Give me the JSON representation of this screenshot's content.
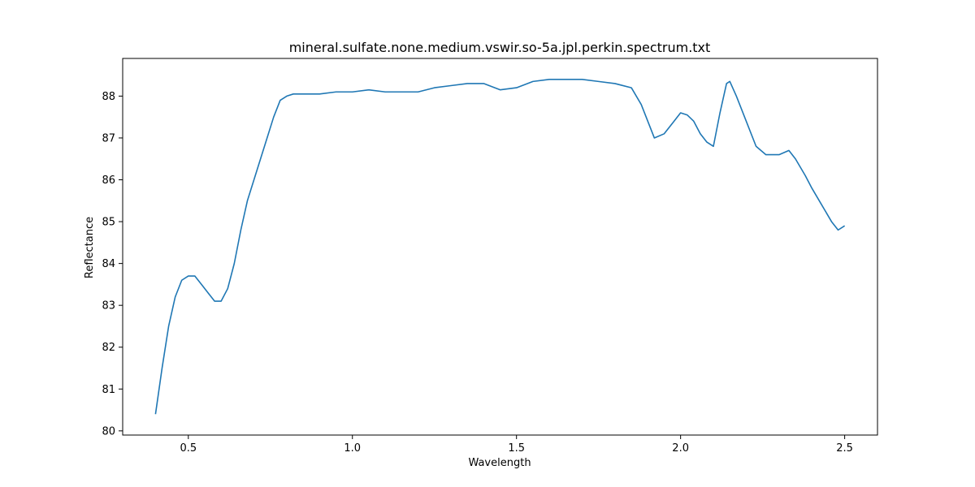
{
  "chart_data": {
    "type": "line",
    "title": "mineral.sulfate.none.medium.vswir.so-5a.jpl.perkin.spectrum.txt",
    "xlabel": "Wavelength",
    "ylabel": "Reflectance",
    "xlim": [
      0.3,
      2.6
    ],
    "ylim": [
      79.9,
      88.9
    ],
    "xticks": [
      0.5,
      1.0,
      1.5,
      2.0,
      2.5
    ],
    "xtick_labels": [
      "0.5",
      "1.0",
      "1.5",
      "2.0",
      "2.5"
    ],
    "yticks": [
      80,
      81,
      82,
      83,
      84,
      85,
      86,
      87,
      88
    ],
    "ytick_labels": [
      "80",
      "81",
      "82",
      "83",
      "84",
      "85",
      "86",
      "87",
      "88"
    ],
    "grid": false,
    "line_color": "#1f77b4",
    "series": [
      {
        "x": [
          0.4,
          0.42,
          0.44,
          0.46,
          0.48,
          0.5,
          0.52,
          0.54,
          0.56,
          0.58,
          0.6,
          0.62,
          0.64,
          0.66,
          0.68,
          0.7,
          0.72,
          0.74,
          0.76,
          0.78,
          0.8,
          0.82,
          0.84,
          0.86,
          0.9,
          0.95,
          1.0,
          1.05,
          1.1,
          1.15,
          1.2,
          1.25,
          1.3,
          1.35,
          1.4,
          1.45,
          1.5,
          1.55,
          1.6,
          1.65,
          1.7,
          1.75,
          1.8,
          1.85,
          1.88,
          1.9,
          1.92,
          1.95,
          1.98,
          2.0,
          2.02,
          2.04,
          2.06,
          2.08,
          2.1,
          2.12,
          2.14,
          2.15,
          2.17,
          2.2,
          2.23,
          2.26,
          2.3,
          2.33,
          2.35,
          2.38,
          2.4,
          2.43,
          2.46,
          2.48,
          2.5
        ],
        "y": [
          80.4,
          81.5,
          82.5,
          83.2,
          83.6,
          83.7,
          83.7,
          83.5,
          83.3,
          83.1,
          83.1,
          83.4,
          84.0,
          84.8,
          85.5,
          86.0,
          86.5,
          87.0,
          87.5,
          87.9,
          88.0,
          88.05,
          88.05,
          88.05,
          88.05,
          88.1,
          88.1,
          88.15,
          88.1,
          88.1,
          88.1,
          88.2,
          88.25,
          88.3,
          88.3,
          88.15,
          88.2,
          88.35,
          88.4,
          88.4,
          88.4,
          88.35,
          88.3,
          88.2,
          87.8,
          87.4,
          87.0,
          87.1,
          87.4,
          87.6,
          87.55,
          87.4,
          87.1,
          86.9,
          86.8,
          87.6,
          88.3,
          88.35,
          88.0,
          87.4,
          86.8,
          86.6,
          86.6,
          86.7,
          86.5,
          86.1,
          85.8,
          85.4,
          85.0,
          84.8,
          84.9
        ]
      }
    ]
  }
}
